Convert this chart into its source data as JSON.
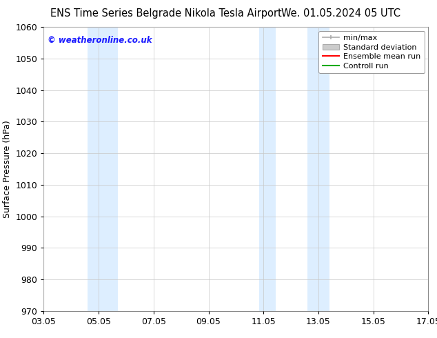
{
  "title_left": "ENS Time Series Belgrade Nikola Tesla Airport",
  "title_right": "We. 01.05.2024 05 UTC",
  "ylabel": "Surface Pressure (hPa)",
  "ylim": [
    970,
    1060
  ],
  "yticks": [
    970,
    980,
    990,
    1000,
    1010,
    1020,
    1030,
    1040,
    1050,
    1060
  ],
  "xtick_labels": [
    "03.05",
    "05.05",
    "07.05",
    "09.05",
    "11.05",
    "13.05",
    "15.05",
    "17.05"
  ],
  "xtick_positions": [
    3,
    5,
    7,
    9,
    11,
    13,
    15,
    17
  ],
  "xlim": [
    3,
    17
  ],
  "shaded_bands": [
    {
      "xmin": 4.6,
      "xmax": 5.1,
      "color": "#ddeeff"
    },
    {
      "xmin": 5.1,
      "xmax": 5.7,
      "color": "#ddeeff"
    },
    {
      "xmin": 10.85,
      "xmax": 11.45,
      "color": "#ddeeff"
    },
    {
      "xmin": 12.6,
      "xmax": 13.4,
      "color": "#ddeeff"
    }
  ],
  "watermark": "© weatheronline.co.uk",
  "watermark_color": "#1a1aff",
  "legend_labels": [
    "min/max",
    "Standard deviation",
    "Ensemble mean run",
    "Controll run"
  ],
  "legend_line_color": "#aaaaaa",
  "legend_std_face": "#cccccc",
  "legend_std_edge": "#aaaaaa",
  "legend_mean_color": "#ff0000",
  "legend_ctrl_color": "#00aa00",
  "background_color": "#ffffff",
  "grid_color": "#c8c8c8",
  "spine_color": "#888888",
  "title_fontsize": 10.5,
  "ylabel_fontsize": 9,
  "tick_fontsize": 9,
  "legend_fontsize": 8,
  "watermark_fontsize": 8.5
}
